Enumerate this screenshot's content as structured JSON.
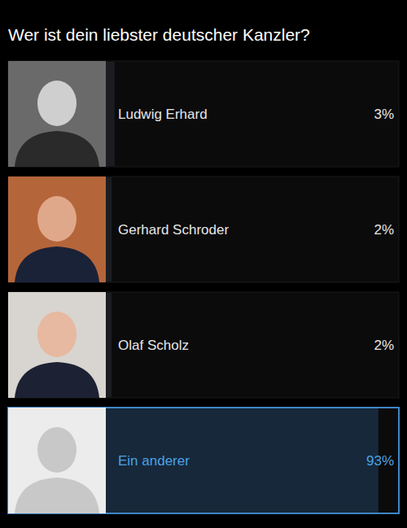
{
  "chart_data": {
    "type": "bar",
    "orientation": "horizontal",
    "title": "Wer ist dein liebster deutscher Kanzler?",
    "categories": [
      "Ludwig Erhard",
      "Gerhard Schroder",
      "Olaf Scholz",
      "Ein anderer"
    ],
    "values": [
      3,
      2,
      2,
      93
    ],
    "value_labels": [
      "3%",
      "2%",
      "2%",
      "93%"
    ],
    "data_labels": true,
    "tick_labels": false,
    "colors": [
      "#1b1d21",
      "#1b1d21",
      "#1b1d21",
      "#17283a"
    ],
    "xlim": [
      0,
      100
    ]
  }
}
